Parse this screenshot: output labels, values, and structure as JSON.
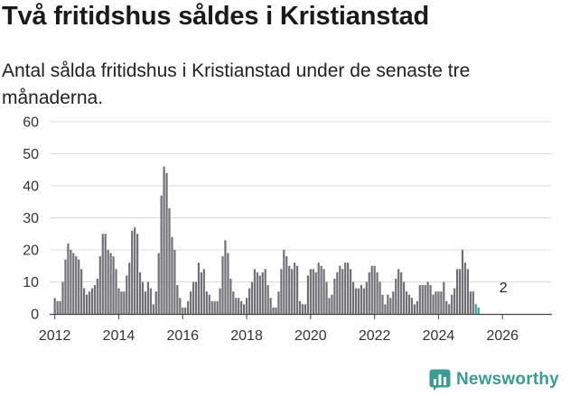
{
  "title": "Två fritidshus såldes i Kristianstad",
  "subtitle": "Antal sålda fritidshus i Kristianstad under de senaste tre månaderna.",
  "brand": {
    "name": "Newsworthy",
    "color": "#3d9b8f"
  },
  "chart_data": {
    "type": "bar",
    "title": "Två fritidshus såldes i Kristianstad",
    "subtitle": "Antal sålda fritidshus i Kristianstad under de senaste tre månaderna.",
    "xlabel": "",
    "ylabel": "",
    "ylim": [
      0,
      60
    ],
    "yticks": [
      "0",
      "10",
      "20",
      "30",
      "40",
      "50",
      "60"
    ],
    "xticks": [
      "2012",
      "2014",
      "2016",
      "2018",
      "2020",
      "2022",
      "2024",
      "2026"
    ],
    "x_start": "2011-12",
    "grid": true,
    "series": [
      {
        "name": "Antal sålda fritidshus",
        "color": "#717075",
        "values": [
          0,
          5,
          4,
          4,
          10,
          17,
          22,
          20,
          19,
          18,
          17,
          14,
          8,
          6,
          7,
          8,
          9,
          11,
          18,
          25,
          25,
          20,
          19,
          18,
          14,
          8,
          7,
          7,
          12,
          16,
          26,
          27,
          25,
          13,
          10,
          7,
          10,
          8,
          3,
          7,
          19,
          37,
          46,
          44,
          33,
          24,
          20,
          9,
          5,
          2,
          2,
          4,
          7,
          10,
          10,
          16,
          13,
          14,
          7,
          6,
          4,
          4,
          4,
          8,
          18,
          23,
          19,
          11,
          7,
          5,
          5,
          4,
          3,
          5,
          8,
          10,
          14,
          13,
          12,
          13,
          14,
          9,
          5,
          2,
          2,
          7,
          14,
          20,
          18,
          15,
          14,
          16,
          15,
          4,
          3,
          3,
          12,
          14,
          14,
          13,
          16,
          15,
          14,
          10,
          5,
          6,
          11,
          13,
          15,
          14,
          16,
          16,
          14,
          10,
          8,
          8,
          9,
          8,
          10,
          13,
          15,
          15,
          13,
          10,
          6,
          3,
          6,
          5,
          7,
          11,
          14,
          13,
          10,
          7,
          6,
          5,
          3,
          4,
          9,
          9,
          9,
          10,
          9,
          6,
          7,
          7,
          7,
          10,
          4,
          3,
          6,
          8,
          14,
          14,
          20,
          16,
          14,
          7,
          7
        ]
      },
      {
        "name": "Senaste tre månaderna",
        "color": "#3d9b8f",
        "values": [
          3,
          2
        ]
      }
    ],
    "annotations": [
      {
        "label": "2",
        "value": 2,
        "month": "2026-01"
      }
    ]
  }
}
